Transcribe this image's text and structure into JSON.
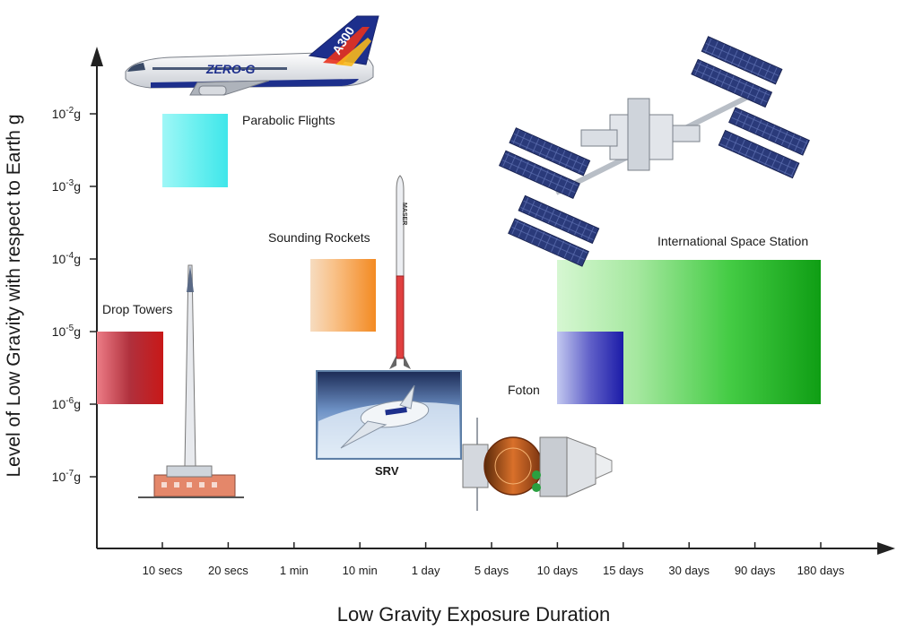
{
  "axes": {
    "y_title": "Level of Low Gravity with respect to Earth g",
    "x_title": "Low Gravity Exposure Duration",
    "y_ticks": [
      {
        "base": "10",
        "exp": "-2",
        "unit": "g"
      },
      {
        "base": "10",
        "exp": "-3",
        "unit": "g"
      },
      {
        "base": "10",
        "exp": "-4",
        "unit": "g"
      },
      {
        "base": "10",
        "exp": "-5",
        "unit": "g"
      },
      {
        "base": "10",
        "exp": "-6",
        "unit": "g"
      },
      {
        "base": "10",
        "exp": "-7",
        "unit": "g"
      }
    ],
    "x_ticks": [
      "10 secs",
      "20 secs",
      "1 min",
      "10 min",
      "1 day",
      "5 days",
      "10 days",
      "15 days",
      "30 days",
      "90 days",
      "180 days"
    ]
  },
  "platforms": {
    "parabolic": "Parabolic Flights",
    "rockets": "Sounding Rockets",
    "towers": "Drop Towers",
    "iss": "International Space Station",
    "foton": "Foton",
    "srv": "SRV"
  },
  "illustrations": {
    "aircraft_brand": "ZERO-G",
    "aircraft_model": "A300",
    "rocket_brand": "MASER"
  },
  "colors": {
    "parabolic": "#5ef0f0",
    "rockets": "#f7a040",
    "towers": "#c8202c",
    "iss": "#2ec22e",
    "foton": "#3a3ac0"
  }
}
